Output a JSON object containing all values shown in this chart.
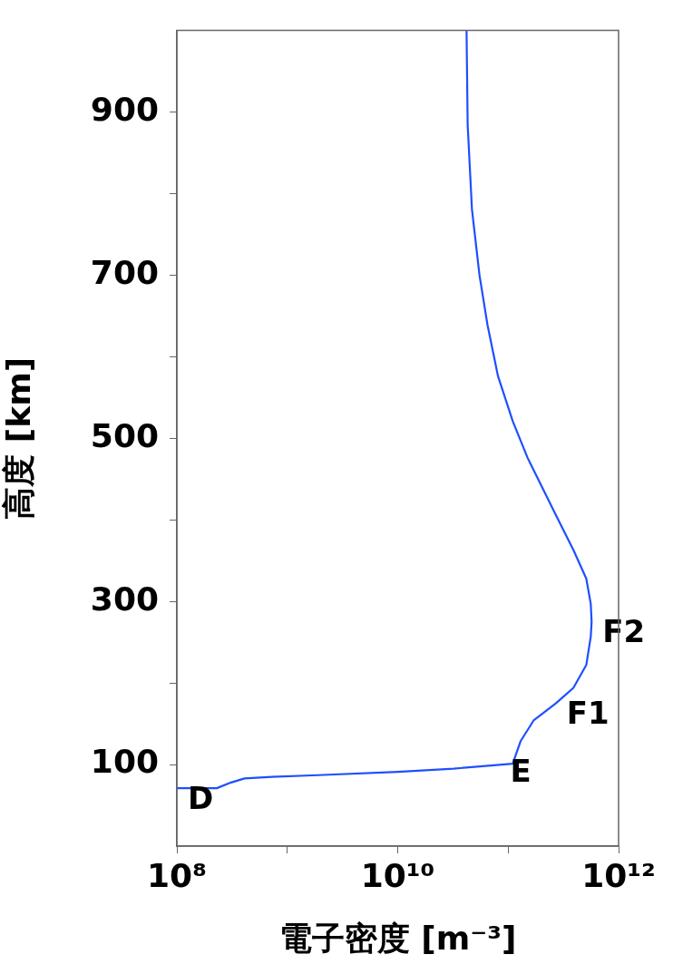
{
  "chart_data": {
    "type": "line",
    "xlabel": "電子密度 [m⁻³]",
    "ylabel": "高度 [km]",
    "log": "x",
    "grid": false,
    "legend": false,
    "marker": "none",
    "line_style": "solid",
    "xlim": [
      100000000.0,
      1000000000000.0
    ],
    "xticks": [
      {
        "value": 100000000.0,
        "label": "10⁸"
      },
      {
        "value": 1000000000.0,
        "label": null
      },
      {
        "value": 10000000000.0,
        "label": "10¹⁰"
      },
      {
        "value": 100000000000.0,
        "label": null
      },
      {
        "value": 1000000000000.0,
        "label": "10¹²"
      }
    ],
    "ylim": [
      0,
      1000
    ],
    "yticks": [
      {
        "value": 100,
        "label": "100"
      },
      {
        "value": 200,
        "label": null
      },
      {
        "value": 300,
        "label": "300"
      },
      {
        "value": 400,
        "label": null
      },
      {
        "value": 500,
        "label": "500"
      },
      {
        "value": 600,
        "label": null
      },
      {
        "value": 700,
        "label": "700"
      },
      {
        "value": 800,
        "label": null
      },
      {
        "value": 900,
        "label": "900"
      }
    ],
    "x": [
      100000000.0,
      230000000.0,
      310000000.0,
      410000000.0,
      730000000.0,
      1900000000.0,
      10000000000.0,
      32000000000.0,
      74000000000.0,
      110000000000.0,
      130000000000.0,
      170000000000.0,
      270000000000.0,
      390000000000.0,
      510000000000.0,
      560000000000.0,
      570000000000.0,
      560000000000.0,
      510000000000.0,
      390000000000.0,
      270000000000.0,
      150000000000.0,
      110000000000.0,
      81000000000.0,
      65000000000.0,
      55000000000.0,
      47000000000.0,
      43000000000.0,
      42000000000.0
    ],
    "series": [
      {
        "color": "#1f4fff",
        "values": [
          71,
          71,
          78,
          83,
          85,
          87,
          91,
          95,
          99,
          101,
          129,
          154,
          175,
          194,
          222,
          257,
          275,
          297,
          328,
          363,
          406,
          476,
          521,
          576,
          639,
          700,
          781,
          884,
          1000
        ]
      }
    ],
    "annotations": [
      {
        "text": "D",
        "x": 100000000.0,
        "y": 71
      },
      {
        "text": "E",
        "x": 83000000000.0,
        "y": 104
      },
      {
        "text": "F1",
        "x": 270000000000.0,
        "y": 175
      },
      {
        "text": "F2",
        "x": 570000000000.0,
        "y": 275
      }
    ]
  }
}
